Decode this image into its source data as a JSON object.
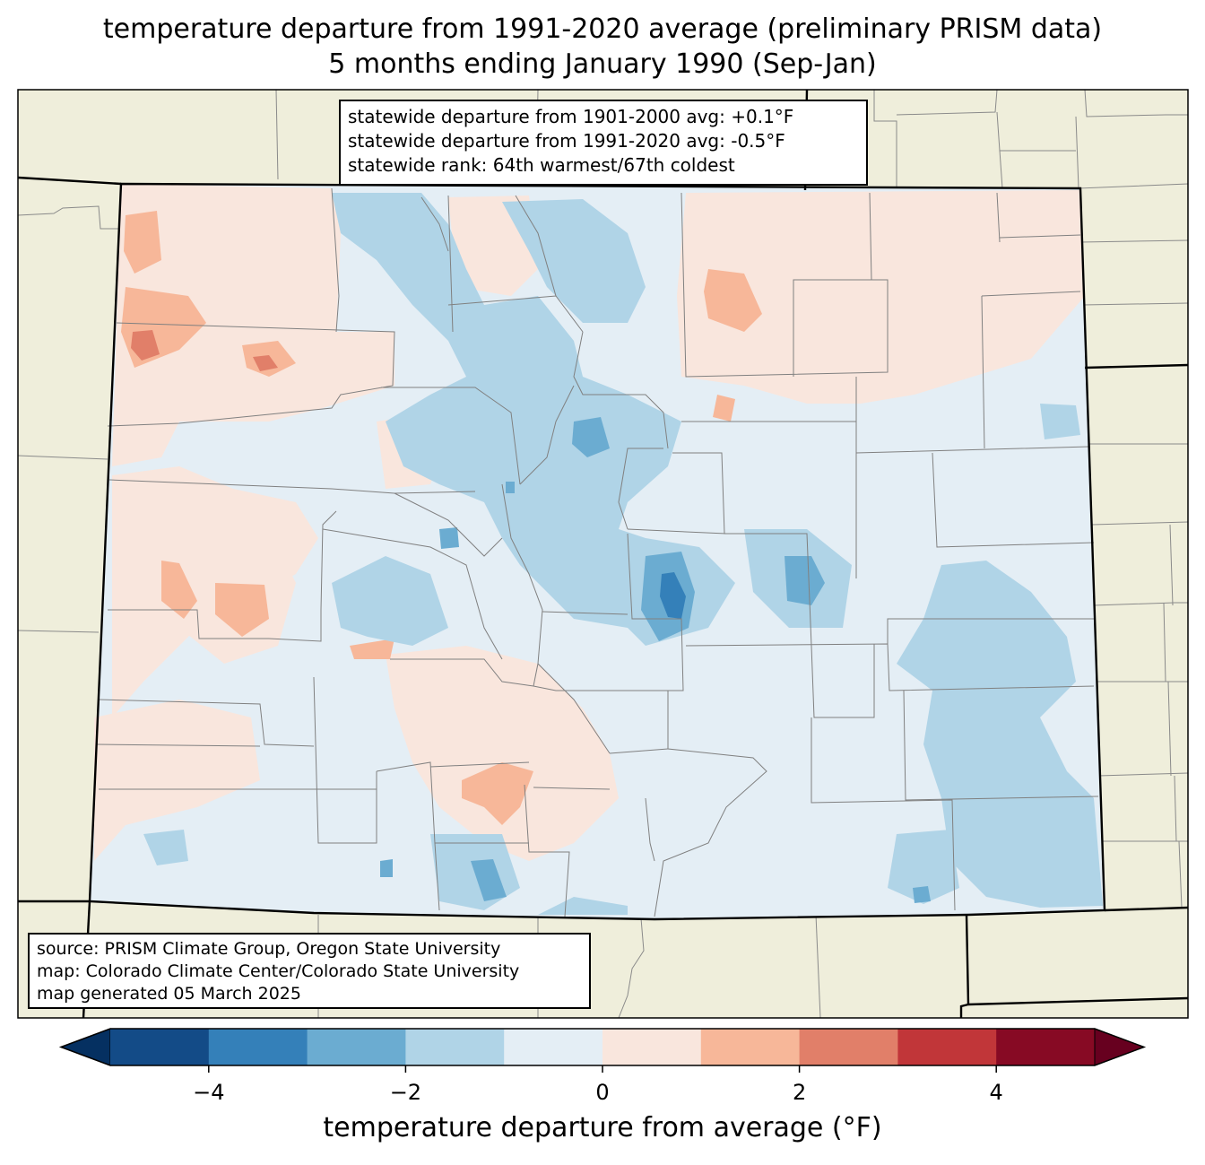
{
  "title": {
    "line1": "temperature departure from 1991-2020 average (preliminary PRISM data)",
    "line2": "5 months ending January 1990 (Sep-Jan)"
  },
  "stats": {
    "line1": "statewide departure from 1901-2000 avg: +0.1°F",
    "line2": "statewide departure from 1991-2020 avg: -0.5°F",
    "line3": "statewide rank: 64th warmest/67th coldest"
  },
  "credits": {
    "line1": "source: PRISM Climate Group, Oregon State University",
    "line2": "map: Colorado Climate Center/Colorado State University",
    "line3": "map generated 05 March 2025"
  },
  "colorbar": {
    "label": "temperature departure from average (°F)",
    "min": -5,
    "max": 5,
    "ticks": [
      {
        "value": -4,
        "label": "−4"
      },
      {
        "value": -2,
        "label": "−2"
      },
      {
        "value": 0,
        "label": "0"
      },
      {
        "value": 2,
        "label": "2"
      },
      {
        "value": 4,
        "label": "4"
      }
    ],
    "bins": [
      {
        "from": -5,
        "to": -4,
        "color": "#134b87"
      },
      {
        "from": -4,
        "to": -3,
        "color": "#3480b9"
      },
      {
        "from": -3,
        "to": -2,
        "color": "#6bacd1"
      },
      {
        "from": -2,
        "to": -1,
        "color": "#b0d4e7"
      },
      {
        "from": -1,
        "to": 0,
        "color": "#e4eef5"
      },
      {
        "from": 0,
        "to": 1,
        "color": "#f9e6dd"
      },
      {
        "from": 1,
        "to": 2,
        "color": "#f7b799"
      },
      {
        "from": 2,
        "to": 3,
        "color": "#e17f69"
      },
      {
        "from": 3,
        "to": 4,
        "color": "#c13639"
      },
      {
        "from": 4,
        "to": 5,
        "color": "#870a24"
      }
    ],
    "under_color": "#053061",
    "over_color": "#67001f"
  },
  "colors": {
    "land_outside": "#efeedb",
    "county_lines": "#808080",
    "state_lines": "#000000"
  }
}
